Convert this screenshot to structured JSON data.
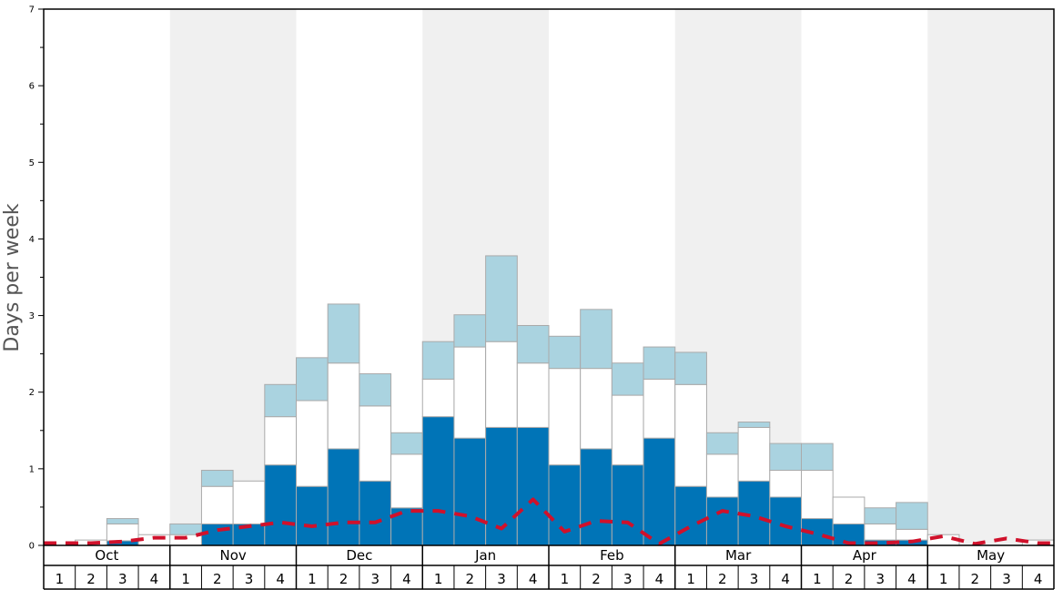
{
  "chart_data": {
    "type": "bar",
    "stacked": true,
    "ylabel": "Days per week",
    "ylim": [
      0,
      7
    ],
    "yticks": [
      "0",
      "1",
      "2",
      "3",
      "4",
      "5",
      "6",
      "7"
    ],
    "months": [
      "Oct",
      "Nov",
      "Dec",
      "Jan",
      "Feb",
      "Mar",
      "Apr",
      "May"
    ],
    "weeks": [
      "1",
      "2",
      "3",
      "4"
    ],
    "colors": {
      "dark": "#0074b7",
      "white": "#ffffff",
      "light": "#aad3e0",
      "line": "#d0112b",
      "band": "#f0f0f0",
      "barBorder": "#aaaaaa"
    },
    "series": [
      {
        "key": "dark",
        "values": [
          0,
          0,
          0.06,
          0,
          0,
          0.28,
          0.28,
          1.05,
          0.77,
          1.26,
          0.84,
          0.49,
          1.68,
          1.4,
          1.54,
          1.54,
          1.05,
          1.26,
          1.05,
          1.4,
          0.77,
          0.63,
          0.84,
          0.63,
          0.35,
          0.28,
          0.07,
          0.07,
          0,
          0,
          0,
          0
        ]
      },
      {
        "key": "white",
        "values": [
          0,
          0.07,
          0.22,
          0.14,
          0.14,
          0.49,
          0.56,
          0.63,
          1.12,
          1.12,
          0.98,
          0.7,
          0.49,
          1.19,
          1.12,
          0.84,
          1.26,
          1.05,
          0.91,
          0.77,
          1.33,
          0.56,
          0.7,
          0.35,
          0.63,
          0.35,
          0.21,
          0.14,
          0.14,
          0,
          0,
          0.07
        ]
      },
      {
        "key": "light",
        "values": [
          0,
          0,
          0.07,
          0,
          0.14,
          0.21,
          0,
          0.42,
          0.56,
          0.77,
          0.42,
          0.28,
          0.49,
          0.42,
          1.12,
          0.49,
          0.42,
          0.77,
          0.42,
          0.42,
          0.42,
          0.28,
          0.07,
          0.35,
          0.35,
          0,
          0.21,
          0.35,
          0,
          0,
          0,
          0
        ]
      }
    ],
    "line": [
      0.03,
      0.03,
      0.05,
      0.1,
      0.1,
      0.2,
      0.25,
      0.3,
      0.25,
      0.3,
      0.3,
      0.45,
      0.45,
      0.38,
      0.22,
      0.6,
      0.18,
      0.32,
      0.3,
      0.02,
      0.25,
      0.45,
      0.38,
      0.25,
      0.15,
      0.03,
      0.03,
      0.05,
      0.12,
      0.02,
      0.09,
      0.03
    ]
  }
}
